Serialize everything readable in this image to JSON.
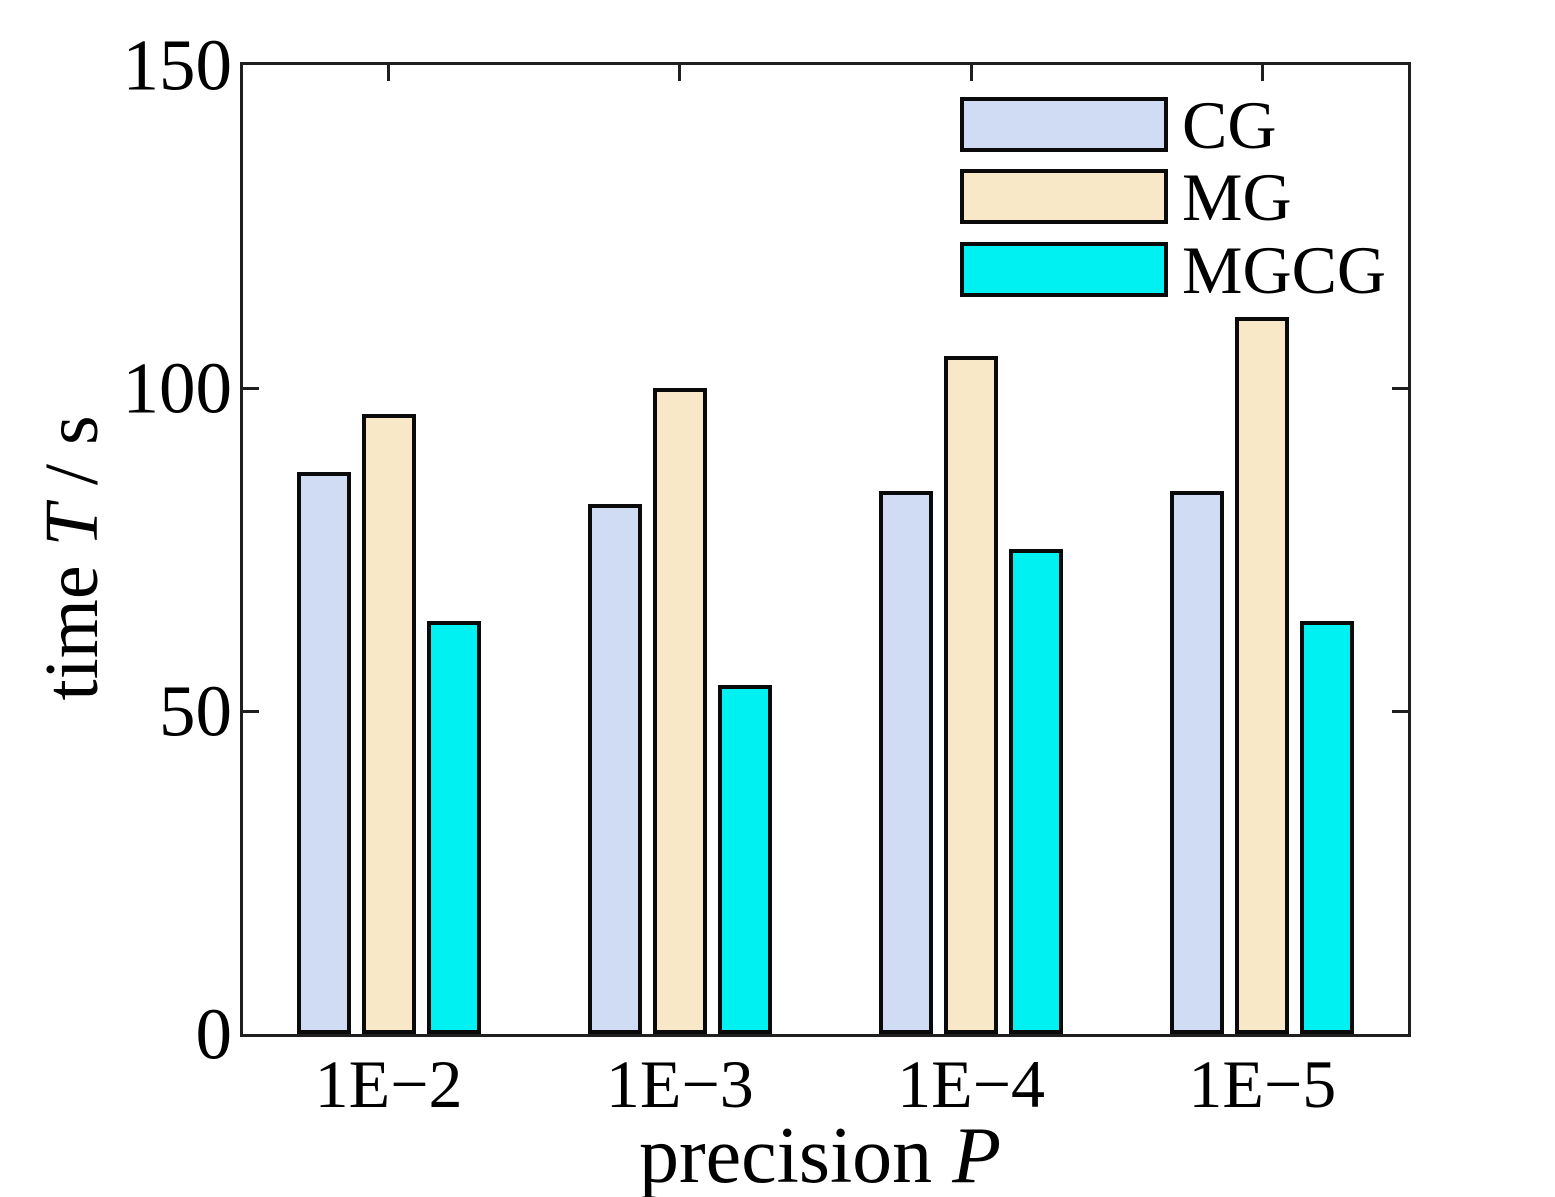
{
  "figure": {
    "background": "#ffffff",
    "axis_color": "#1f1f1f",
    "bar_edge_color": "#0a0a0a"
  },
  "axes": {
    "ylabel": {
      "prefix": "time ",
      "var": "T",
      "suffix": " / s"
    },
    "xlabel": {
      "prefix": "precision ",
      "var": "P",
      "suffix": ""
    },
    "y_ticks": [
      {
        "value": 0,
        "label": "0"
      },
      {
        "value": 50,
        "label": "50"
      },
      {
        "value": 100,
        "label": "100"
      },
      {
        "value": 150,
        "label": "150"
      }
    ]
  },
  "chart_data": {
    "type": "bar",
    "title": "",
    "xlabel": "precision P",
    "ylabel": "time T / s",
    "categories": [
      "1E−2",
      "1E−3",
      "1E−4",
      "1E−5"
    ],
    "series": [
      {
        "name": "CG",
        "color": "#cfdcf3",
        "values": [
          87,
          82,
          84,
          84
        ]
      },
      {
        "name": "MG",
        "color": "#f9e8c8",
        "values": [
          96,
          100,
          105,
          111
        ]
      },
      {
        "name": "MGCG",
        "color": "#00f1f1",
        "values": [
          64,
          54,
          75,
          64
        ]
      }
    ],
    "ylim": [
      0,
      150
    ],
    "yticks": [
      0,
      50,
      100,
      150
    ],
    "grid": false,
    "legend_position": "top-right"
  }
}
